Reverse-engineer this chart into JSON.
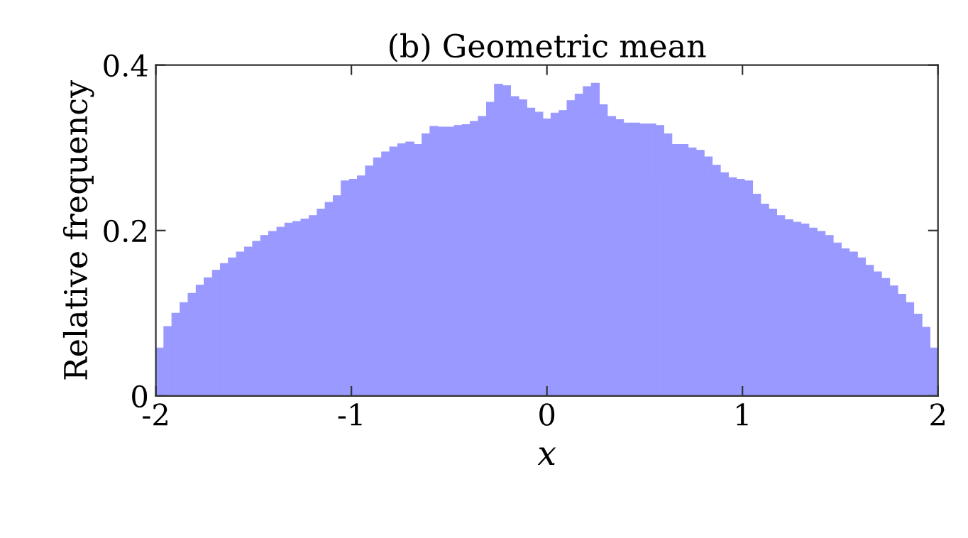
{
  "chart_data": {
    "type": "histogram",
    "title": "(b) Geometric mean",
    "xlabel": "x",
    "ylabel": "Relative frequency",
    "bins": [
      -2,
      -1.959,
      -1.918,
      -1.876,
      -1.835,
      -1.794,
      -1.753,
      -1.711,
      -1.67,
      -1.629,
      -1.588,
      -1.546,
      -1.505,
      -1.464,
      -1.423,
      -1.381,
      -1.34,
      -1.299,
      -1.258,
      -1.216,
      -1.175,
      -1.134,
      -1.093,
      -1.052,
      -1.01,
      -0.969,
      -0.928,
      -0.887,
      -0.845,
      -0.804,
      -0.763,
      -0.722,
      -0.68,
      -0.639,
      -0.598,
      -0.557,
      -0.515,
      -0.474,
      -0.433,
      -0.392,
      -0.351,
      -0.309,
      -0.268,
      -0.227,
      -0.186,
      -0.144,
      -0.103,
      -0.062,
      -0.021,
      0.021,
      0.062,
      0.103,
      0.144,
      0.186,
      0.227,
      0.268,
      0.309,
      0.351,
      0.392,
      0.433,
      0.474,
      0.515,
      0.557,
      0.598,
      0.639,
      0.68,
      0.722,
      0.763,
      0.804,
      0.845,
      0.887,
      0.928,
      0.969,
      1.01,
      1.052,
      1.093,
      1.134,
      1.175,
      1.216,
      1.258,
      1.299,
      1.34,
      1.381,
      1.423,
      1.464,
      1.505,
      1.546,
      1.588,
      1.629,
      1.67,
      1.711,
      1.753,
      1.794,
      1.835,
      1.876,
      1.918,
      1.959,
      2
    ],
    "values": [
      0.058,
      0.084,
      0.1,
      0.113,
      0.124,
      0.134,
      0.143,
      0.152,
      0.16,
      0.167,
      0.174,
      0.18,
      0.187,
      0.194,
      0.199,
      0.204,
      0.209,
      0.211,
      0.214,
      0.218,
      0.226,
      0.234,
      0.242,
      0.26,
      0.262,
      0.266,
      0.278,
      0.288,
      0.295,
      0.301,
      0.305,
      0.307,
      0.304,
      0.317,
      0.326,
      0.325,
      0.325,
      0.327,
      0.328,
      0.332,
      0.338,
      0.355,
      0.377,
      0.375,
      0.362,
      0.358,
      0.348,
      0.343,
      0.335,
      0.342,
      0.345,
      0.357,
      0.365,
      0.374,
      0.378,
      0.352,
      0.338,
      0.334,
      0.33,
      0.33,
      0.329,
      0.329,
      0.327,
      0.317,
      0.304,
      0.304,
      0.3,
      0.297,
      0.289,
      0.279,
      0.27,
      0.264,
      0.262,
      0.26,
      0.244,
      0.232,
      0.226,
      0.218,
      0.213,
      0.21,
      0.208,
      0.203,
      0.199,
      0.194,
      0.185,
      0.178,
      0.174,
      0.167,
      0.158,
      0.15,
      0.142,
      0.133,
      0.123,
      0.113,
      0.099,
      0.083,
      0.058
    ],
    "color": "#9999ff",
    "xlim": [
      -2,
      2
    ],
    "xticks": [
      -2,
      -1,
      0,
      1,
      2
    ],
    "ylim": [
      0,
      0.4
    ],
    "yticks": [
      0,
      0.2,
      0.4
    ],
    "grid": false
  }
}
